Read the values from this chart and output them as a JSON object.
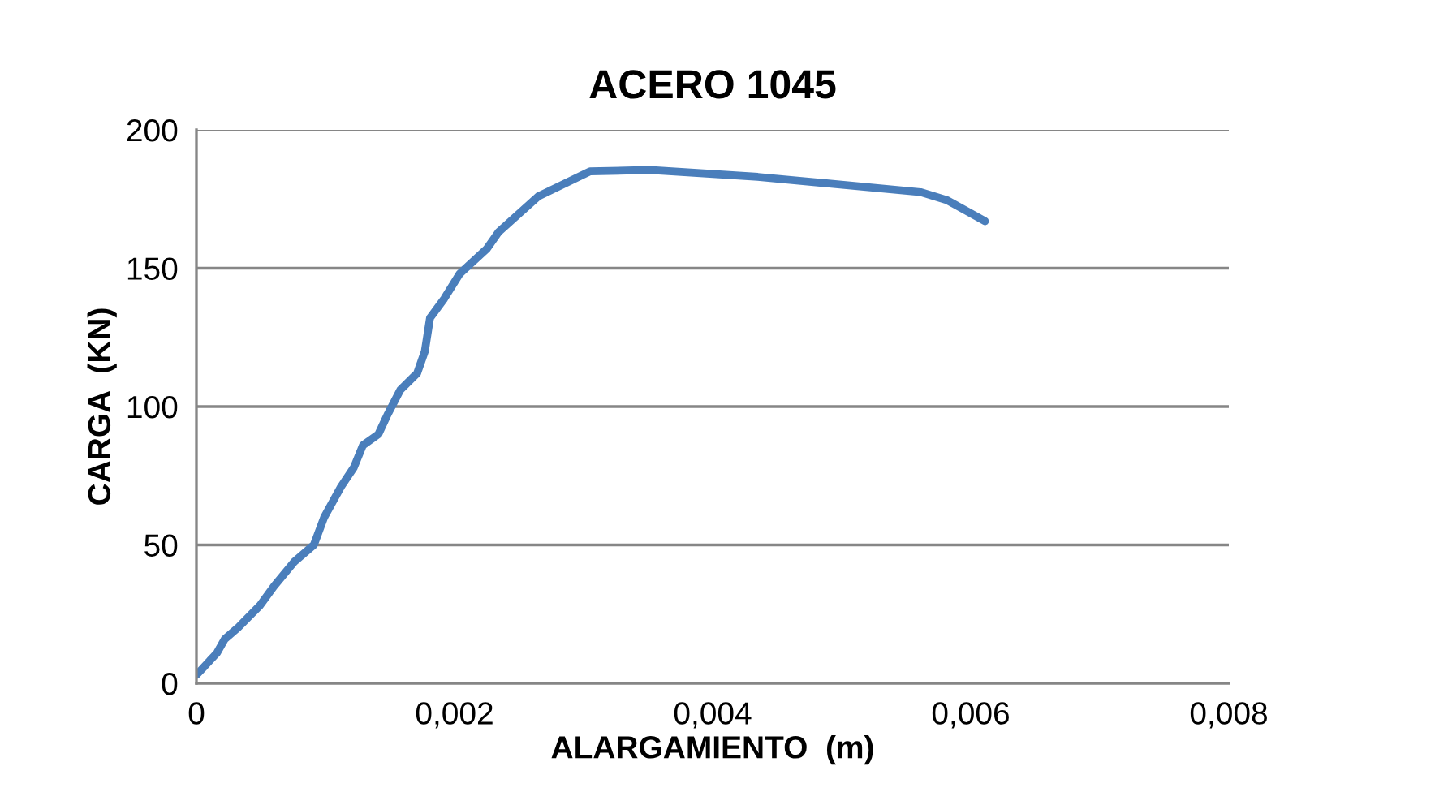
{
  "chart_data": {
    "type": "line",
    "title": "ACERO 1045",
    "xlabel": "ALARGAMIENTO  (m)",
    "ylabel": "CARGA  (KN)",
    "x": [
      0,
      0.00016,
      0.00022,
      0.00032,
      0.00049,
      0.0006,
      0.00076,
      0.00091,
      0.00099,
      0.00112,
      0.00122,
      0.00129,
      0.00141,
      0.00148,
      0.00158,
      0.00171,
      0.00177,
      0.00181,
      0.00192,
      0.00204,
      0.00225,
      0.00234,
      0.00265,
      0.00305,
      0.00351,
      0.00435,
      0.00561,
      0.00582,
      0.00611
    ],
    "series": [
      {
        "color": "#4a7ebb",
        "values": [
          3,
          11,
          16,
          20,
          28,
          35,
          44,
          50,
          60,
          71,
          78,
          86,
          90,
          97,
          106,
          112,
          120,
          132,
          139,
          148,
          157,
          163,
          176,
          185,
          185.5,
          183,
          177.5,
          174.5,
          167
        ]
      }
    ],
    "xlim": [
      0,
      0.008
    ],
    "xticks": [
      {
        "value": 0,
        "label": "0"
      },
      {
        "value": 0.002,
        "label": "0,002"
      },
      {
        "value": 0.004,
        "label": "0,004"
      },
      {
        "value": 0.006,
        "label": "0,006"
      },
      {
        "value": 0.008,
        "label": "0,008"
      }
    ],
    "ylim": [
      0,
      200
    ],
    "yticks": [
      0,
      50,
      100,
      150,
      200
    ],
    "grid": "y",
    "legend": false,
    "marker": "none",
    "line_style": "solid"
  }
}
